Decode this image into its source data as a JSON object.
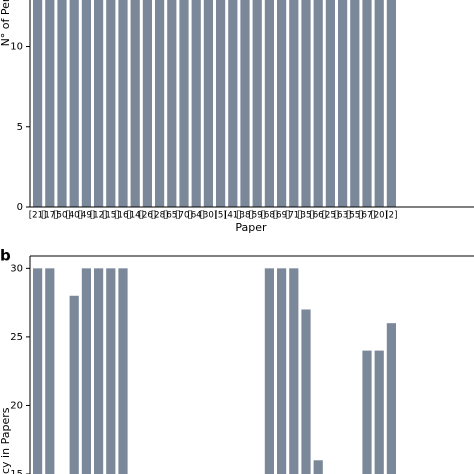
{
  "chart_data": [
    {
      "type": "bar",
      "ylabel": "N° of Per",
      "xlabel": "Paper",
      "categories": [
        "[21]",
        "[17]",
        "[50]",
        "[40]",
        "[49]",
        "[12]",
        "[15]",
        "[16]",
        "[14]",
        "[26]",
        "[28]",
        "[65]",
        "[70]",
        "[64]",
        "[30]",
        "[5]",
        "[41]",
        "[38]",
        "[59]",
        "[68]",
        "[69]",
        "[71]",
        "[35]",
        "[66]",
        "[25]",
        "[63]",
        "[55]",
        "[67]",
        "[20]",
        "[2]"
      ],
      "values": [
        13,
        13,
        13,
        13,
        13,
        13,
        13,
        13,
        13,
        13,
        13,
        13,
        13,
        13,
        13,
        13,
        13,
        13,
        13,
        13,
        13,
        13,
        13,
        13,
        13,
        13,
        13,
        13,
        13,
        13
      ],
      "color": "#7a8899",
      "ylim": [
        0,
        12.9
      ],
      "yticks": [
        0,
        5,
        10
      ]
    },
    {
      "type": "bar",
      "panel": "b",
      "ylabel": "cy in Papers",
      "values": [
        30,
        30,
        null,
        28,
        30,
        30,
        30,
        30,
        null,
        null,
        null,
        null,
        null,
        null,
        null,
        null,
        null,
        null,
        null,
        30,
        30,
        30,
        27,
        16,
        null,
        null,
        null,
        24,
        24,
        26
      ],
      "color": "#7a8899",
      "ylim": [
        15,
        30.9
      ],
      "yticks": [
        15,
        20,
        25,
        30
      ]
    }
  ]
}
